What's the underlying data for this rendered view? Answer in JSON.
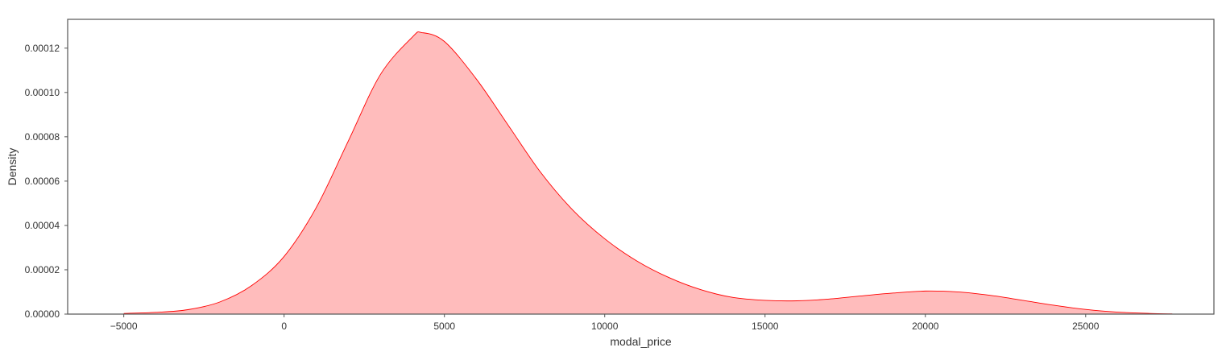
{
  "chart_data": {
    "type": "area",
    "xlabel": "modal_price",
    "ylabel": "Density",
    "xlim": [
      -6750,
      29000
    ],
    "ylim": [
      0,
      0.000133
    ],
    "xticks": [
      -5000,
      0,
      5000,
      10000,
      15000,
      20000,
      25000
    ],
    "xtick_labels": [
      "−5000",
      "0",
      "5000",
      "10000",
      "15000",
      "20000",
      "25000"
    ],
    "yticks": [
      0,
      2e-05,
      4e-05,
      6e-05,
      8e-05,
      0.0001,
      0.00012
    ],
    "ytick_labels": [
      "0.00000",
      "0.00002",
      "0.00004",
      "0.00006",
      "0.00008",
      "0.00010",
      "0.00012"
    ],
    "grid": false,
    "colors": {
      "line": "#ff0000",
      "fill": "#ffbcbc",
      "frame": "#555555",
      "text": "#333333"
    },
    "series": [
      {
        "x": [
          -5000,
          -4000,
          -3000,
          -2000,
          -1000,
          0,
          1000,
          2000,
          3000,
          4000,
          4300,
          5000,
          6000,
          7000,
          8000,
          9000,
          10000,
          11000,
          12000,
          13000,
          14000,
          15000,
          16000,
          17000,
          18000,
          19000,
          20000,
          21000,
          22000,
          23000,
          24000,
          25000,
          26000,
          27000,
          27700
        ],
        "y": [
          3e-07,
          8e-07,
          2e-06,
          5.5e-06,
          1.3e-05,
          2.6e-05,
          4.8e-05,
          7.8e-05,
          0.000108,
          0.000125,
          0.000127,
          0.000123,
          0.000106,
          8.5e-05,
          6.4e-05,
          4.7e-05,
          3.4e-05,
          2.4e-05,
          1.65e-05,
          1.1e-05,
          7.5e-06,
          6.2e-06,
          6e-06,
          6.8e-06,
          8.2e-06,
          9.5e-06,
          1.04e-05,
          1e-05,
          8.5e-06,
          6.3e-06,
          4e-06,
          2.1e-06,
          9e-07,
          3e-07,
          1e-07
        ]
      }
    ]
  }
}
